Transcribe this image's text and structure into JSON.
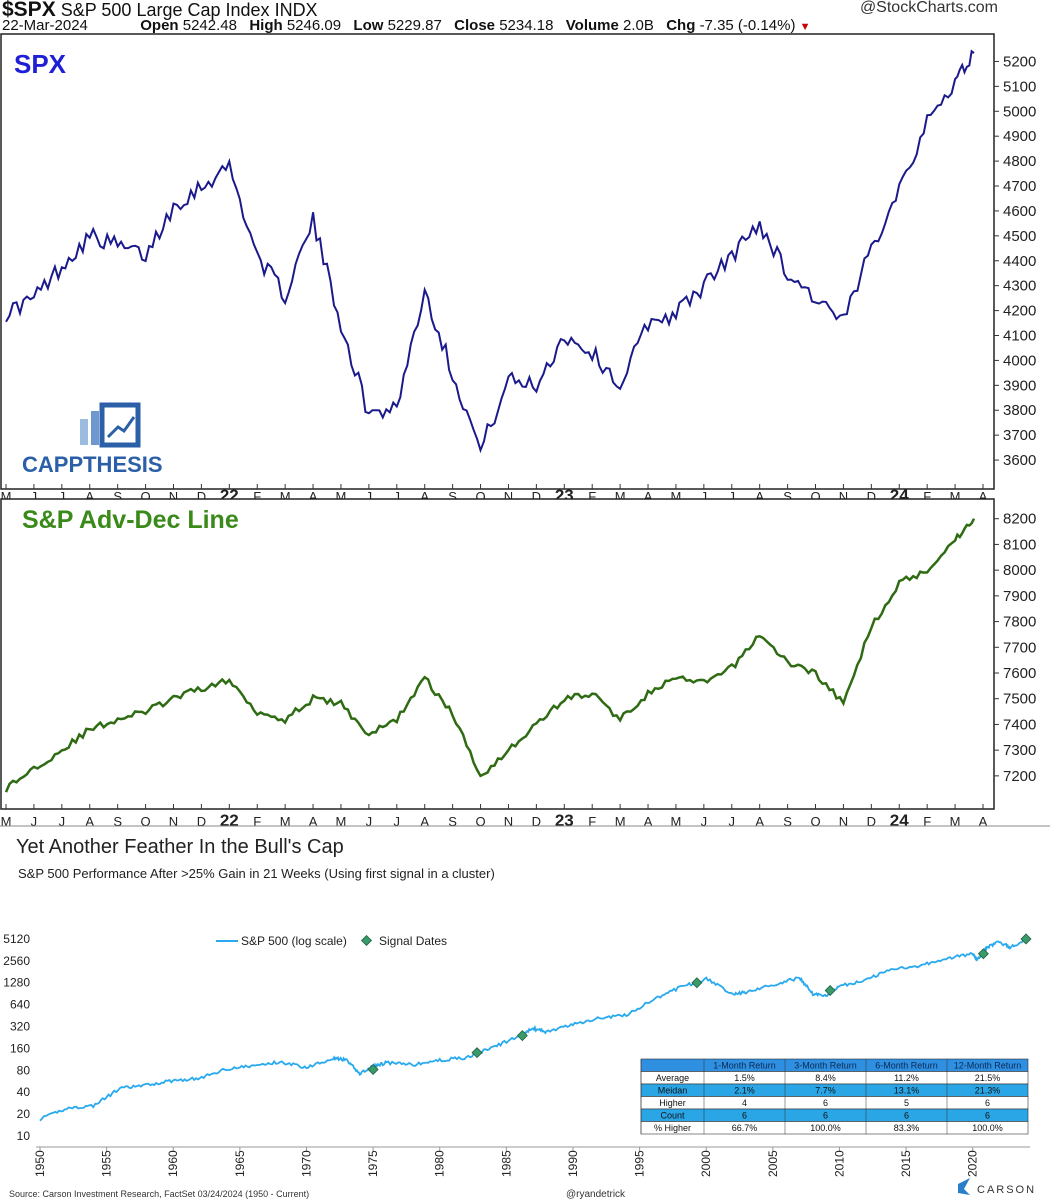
{
  "header": {
    "symbol": "$SPX",
    "name": "S&P 500 Large Cap Index",
    "exchange": "INDX",
    "credit": "@StockCharts.com",
    "date": "22-Mar-2024",
    "open_label": "Open",
    "open": "5242.48",
    "high_label": "High",
    "high": "5246.09",
    "low_label": "Low",
    "low": "5229.87",
    "close_label": "Close",
    "close": "5234.18",
    "volume_label": "Volume",
    "volume": "2.0B",
    "chg_label": "Chg",
    "chg": "-7.35 (-0.14%)",
    "chg_icon": "down-triangle-icon"
  },
  "colors": {
    "spx_line": "#1a1a8c",
    "spx_title": "#1f1fd6",
    "adl_line": "#2e6b12",
    "adl_title": "#3a8a1a",
    "bottom_line": "#29a9ee",
    "signal_fill": "#3a9a6a",
    "table_header": "#2f8fe0",
    "table_accent": "#2aa5e6",
    "logo_blue": "#2b5fa8"
  },
  "logo": {
    "text": "CAPPTHESIS",
    "icon": "rising-bar-chart-icon"
  },
  "source_note": "Source: Carson Investment Research, FactSet 03/24/2024 (1950 - Current)",
  "handle": "@ryandetrick",
  "brand": "CARSON",
  "brand_icon": "carson-chevron-icon",
  "chart_data": [
    {
      "type": "line",
      "title": "SPX",
      "month_labels": [
        "M",
        "J",
        "J",
        "A",
        "S",
        "O",
        "N",
        "D",
        "22",
        "F",
        "M",
        "A",
        "M",
        "J",
        "J",
        "A",
        "S",
        "O",
        "N",
        "D",
        "23",
        "F",
        "M",
        "A",
        "M",
        "J",
        "J",
        "A",
        "S",
        "O",
        "N",
        "D",
        "24",
        "F",
        "M",
        "A"
      ],
      "yticks": [
        3600,
        3700,
        3800,
        3900,
        4000,
        4100,
        4200,
        4300,
        4400,
        4500,
        4600,
        4700,
        4800,
        4900,
        5000,
        5100,
        5200
      ],
      "ylim": [
        3520,
        5270
      ],
      "x": [
        "2021-05",
        "2021-06",
        "2021-07",
        "2021-08",
        "2021-09",
        "2021-10",
        "2021-11",
        "2021-12",
        "2022-01",
        "2022-02",
        "2022-03",
        "2022-04",
        "2022-05",
        "2022-06",
        "2022-07",
        "2022-08",
        "2022-09",
        "2022-10",
        "2022-11",
        "2022-12",
        "2023-01",
        "2023-02",
        "2023-03",
        "2023-04",
        "2023-05",
        "2023-06",
        "2023-07",
        "2023-08",
        "2023-09",
        "2023-10",
        "2023-11",
        "2023-12",
        "2024-01",
        "2024-02",
        "2024-03",
        "2024-03-22"
      ],
      "values": [
        4190,
        4250,
        4380,
        4500,
        4460,
        4420,
        4620,
        4700,
        4780,
        4420,
        4260,
        4560,
        4150,
        3780,
        3820,
        4280,
        3950,
        3640,
        3920,
        3900,
        4100,
        4030,
        3900,
        4150,
        4190,
        4300,
        4420,
        4550,
        4350,
        4250,
        4150,
        4450,
        4700,
        4950,
        5120,
        5234
      ]
    },
    {
      "type": "line",
      "title": "S&P Adv-Dec Line",
      "month_labels": [
        "M",
        "J",
        "J",
        "A",
        "S",
        "O",
        "N",
        "D",
        "22",
        "F",
        "M",
        "A",
        "M",
        "J",
        "J",
        "A",
        "S",
        "O",
        "N",
        "D",
        "23",
        "F",
        "M",
        "A",
        "M",
        "J",
        "J",
        "A",
        "S",
        "O",
        "N",
        "D",
        "24",
        "F",
        "M",
        "A"
      ],
      "yticks": [
        7200,
        7300,
        7400,
        7500,
        7600,
        7700,
        7800,
        7900,
        8000,
        8100,
        8200
      ],
      "ylim": [
        7110,
        8230
      ],
      "x": [
        "2021-05",
        "2021-06",
        "2021-07",
        "2021-08",
        "2021-09",
        "2021-10",
        "2021-11",
        "2021-12",
        "2022-01",
        "2022-02",
        "2022-03",
        "2022-04",
        "2022-05",
        "2022-06",
        "2022-07",
        "2022-08",
        "2022-09",
        "2022-10",
        "2022-11",
        "2022-12",
        "2023-01",
        "2023-02",
        "2023-03",
        "2023-04",
        "2023-05",
        "2023-06",
        "2023-07",
        "2023-08",
        "2023-09",
        "2023-10",
        "2023-11",
        "2023-12",
        "2024-01",
        "2024-02",
        "2024-03",
        "2024-03-22"
      ],
      "values": [
        7150,
        7230,
        7300,
        7380,
        7420,
        7450,
        7500,
        7540,
        7570,
        7450,
        7420,
        7500,
        7480,
        7360,
        7420,
        7580,
        7440,
        7200,
        7300,
        7400,
        7500,
        7520,
        7420,
        7520,
        7580,
        7560,
        7620,
        7750,
        7640,
        7600,
        7480,
        7780,
        7950,
        8000,
        8120,
        8200
      ]
    },
    {
      "type": "line",
      "title": "Yet Another Feather In the Bull's Cap",
      "subtitle": "S&P 500 Performance After >25% Gain in 21 Weeks (Using first signal in a cluster)",
      "yscale": "log2",
      "yticks": [
        10,
        20,
        40,
        80,
        160,
        320,
        640,
        1280,
        2560,
        5120
      ],
      "ylim": [
        10,
        5800
      ],
      "xlim": [
        1950,
        2024.3
      ],
      "xticks": [
        1950,
        1955,
        1960,
        1965,
        1970,
        1975,
        1980,
        1985,
        1990,
        1995,
        2000,
        2005,
        2010,
        2015,
        2020
      ],
      "legend": [
        "S&P 500 (log scale)",
        "Signal Dates"
      ],
      "series": [
        {
          "name": "S&P 500 (log scale)",
          "x": [
            1950,
            1952,
            1954,
            1956,
            1958,
            1960,
            1962,
            1964,
            1966,
            1968,
            1970,
            1972,
            1973,
            1974,
            1975,
            1976,
            1978,
            1980,
            1982,
            1984,
            1986,
            1987,
            1988,
            1990,
            1992,
            1994,
            1996,
            1998,
            2000,
            2002,
            2003,
            2005,
            2007,
            2008,
            2009,
            2010,
            2012,
            2014,
            2016,
            2018,
            2020,
            2020.3,
            2021,
            2022,
            2022.8,
            2024.2
          ],
          "y": [
            17,
            24,
            26,
            45,
            50,
            58,
            62,
            84,
            92,
            104,
            88,
            118,
            110,
            72,
            90,
            102,
            95,
            110,
            120,
            165,
            240,
            300,
            270,
            340,
            420,
            460,
            740,
            1100,
            1450,
            900,
            950,
            1200,
            1500,
            900,
            850,
            1150,
            1400,
            2000,
            2200,
            2750,
            3200,
            2600,
            3800,
            4700,
            3900,
            5234
          ]
        }
      ],
      "signal_dates": [
        {
          "x": 1975.0,
          "y": 82
        },
        {
          "x": 1982.8,
          "y": 140
        },
        {
          "x": 1986.2,
          "y": 240
        },
        {
          "x": 1999.3,
          "y": 1280
        },
        {
          "x": 2009.3,
          "y": 1000
        },
        {
          "x": 2020.8,
          "y": 3200
        },
        {
          "x": 2024.0,
          "y": 5120
        }
      ],
      "table": {
        "headers": [
          "",
          "1-Month Return",
          "3-Month Return",
          "6-Month Return",
          "12-Month Return"
        ],
        "rows": [
          [
            "Average",
            "1.5%",
            "8.4%",
            "11.2%",
            "21.5%"
          ],
          [
            "Meidan",
            "2.1%",
            "7.7%",
            "13.1%",
            "21.3%"
          ],
          [
            "Higher",
            "4",
            "6",
            "5",
            "6"
          ],
          [
            "Count",
            "6",
            "6",
            "6",
            "6"
          ],
          [
            "% Higher",
            "66.7%",
            "100.0%",
            "83.3%",
            "100.0%"
          ]
        ]
      }
    }
  ]
}
